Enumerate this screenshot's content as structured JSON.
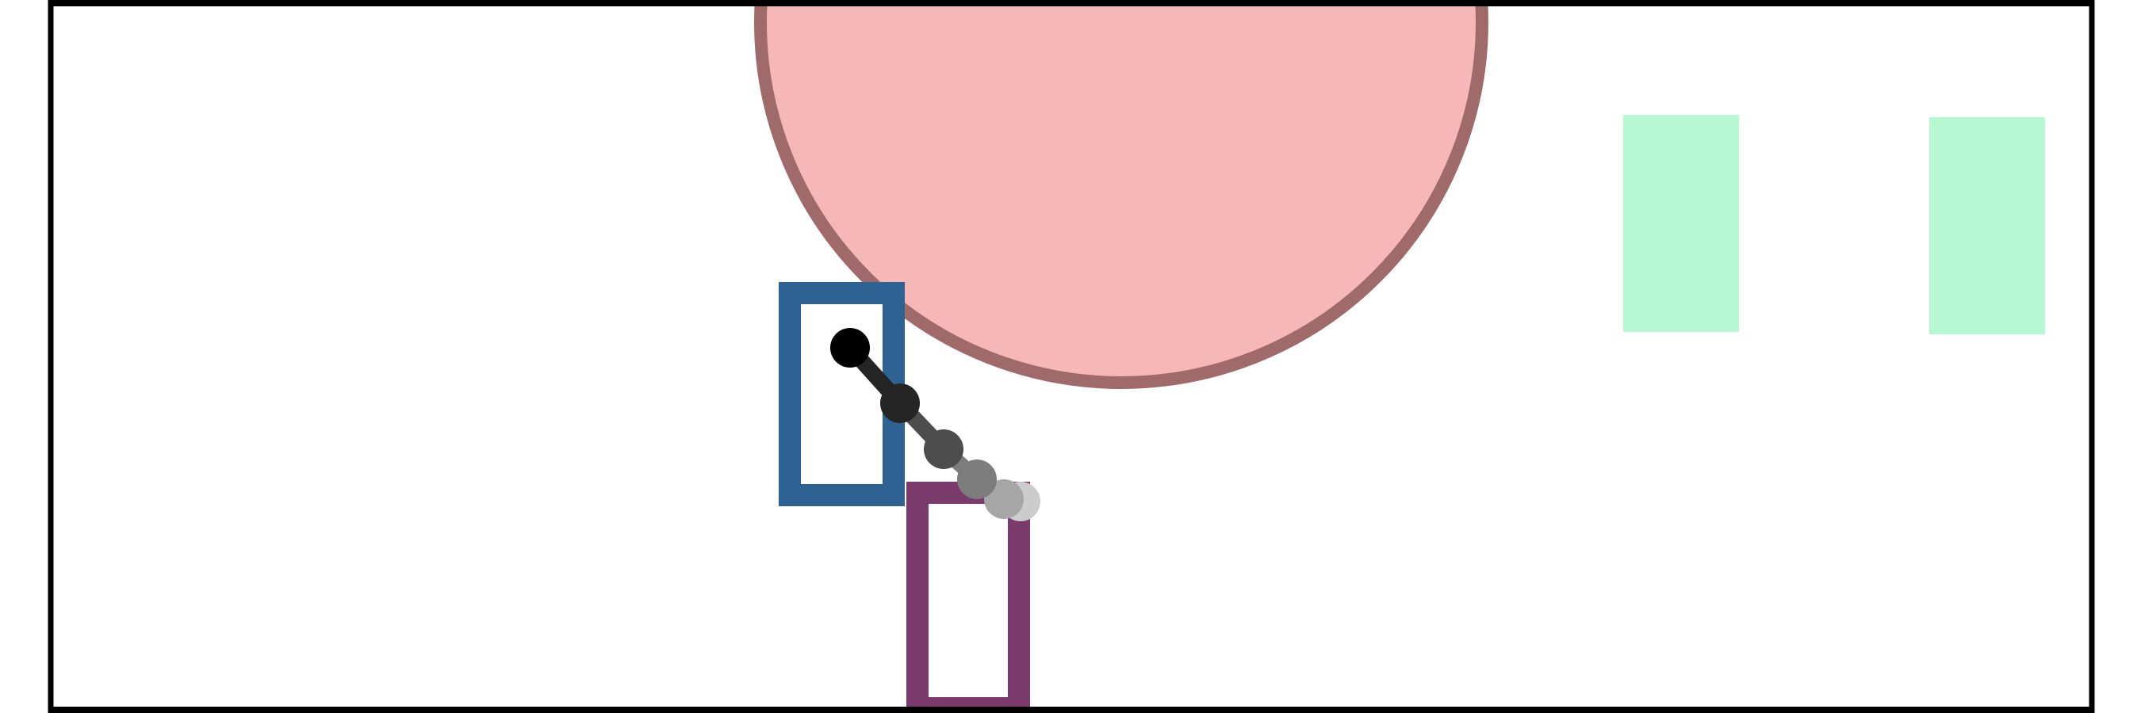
{
  "colors": {
    "background": "#ffffff",
    "frame": "#000000",
    "circle_fill": "#f6b7b7",
    "circle_stroke": "#a06a6a",
    "blue_box": "#2d6292",
    "purple_box": "#7b3a6c",
    "green_box": "#b6f8d2",
    "trail_dark": "#000000",
    "trail_light": "#cccccc"
  },
  "scene": {
    "trail_points": 6,
    "icons": [
      "circle-obstacle",
      "blue-outline-box",
      "purple-outline-box",
      "green-box",
      "trajectory-trail"
    ]
  }
}
